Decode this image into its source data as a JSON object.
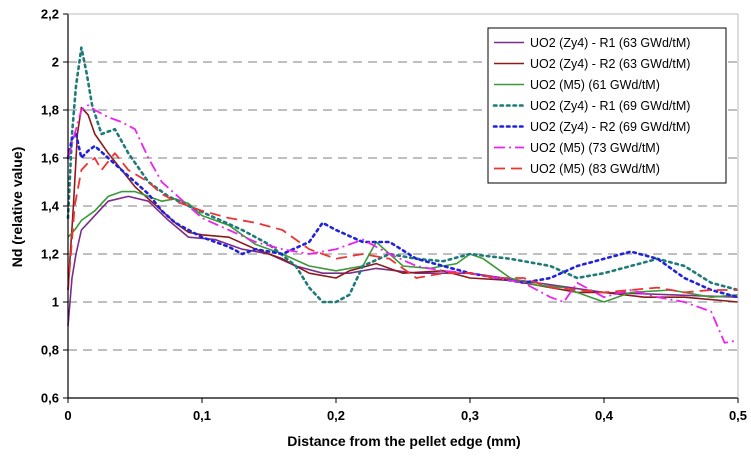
{
  "chart_data": {
    "type": "line",
    "title": "",
    "xlabel": "Distance from the pellet edge (mm)",
    "ylabel": "Nd (relative value)",
    "xlim": [
      0,
      0.5
    ],
    "ylim": [
      0.6,
      2.2
    ],
    "xticks": [
      0,
      0.1,
      0.2,
      0.3,
      0.4,
      0.5
    ],
    "xtick_labels": [
      "0",
      "0,1",
      "0,2",
      "0,3",
      "0,4",
      "0,5"
    ],
    "yticks": [
      0.6,
      0.8,
      1.0,
      1.2,
      1.4,
      1.6,
      1.8,
      2.0,
      2.2
    ],
    "ytick_labels": [
      "0,6",
      "0,8",
      "1",
      "1,2",
      "1,4",
      "1,6",
      "1,8",
      "2",
      "2,2"
    ],
    "grid": "horizontal dashed",
    "legend_position": "top-right",
    "series": [
      {
        "name": "UO2 (Zy4) - R1 (63 GWd/tM)",
        "color": "#7b2d8b",
        "dash": "solid",
        "points": [
          [
            0,
            0.9
          ],
          [
            0.003,
            1.1
          ],
          [
            0.006,
            1.2
          ],
          [
            0.01,
            1.3
          ],
          [
            0.015,
            1.33
          ],
          [
            0.02,
            1.36
          ],
          [
            0.03,
            1.42
          ],
          [
            0.045,
            1.44
          ],
          [
            0.06,
            1.42
          ],
          [
            0.075,
            1.34
          ],
          [
            0.09,
            1.27
          ],
          [
            0.11,
            1.26
          ],
          [
            0.13,
            1.22
          ],
          [
            0.15,
            1.2
          ],
          [
            0.17,
            1.15
          ],
          [
            0.19,
            1.12
          ],
          [
            0.21,
            1.12
          ],
          [
            0.23,
            1.14
          ],
          [
            0.26,
            1.12
          ],
          [
            0.3,
            1.12
          ],
          [
            0.35,
            1.08
          ],
          [
            0.4,
            1.04
          ],
          [
            0.45,
            1.03
          ],
          [
            0.5,
            1.02
          ]
        ]
      },
      {
        "name": "UO2 (Zy4) - R2 (63 GWd/tM)",
        "color": "#8b1a1a",
        "dash": "solid",
        "points": [
          [
            0,
            1.05
          ],
          [
            0.004,
            1.4
          ],
          [
            0.007,
            1.7
          ],
          [
            0.01,
            1.81
          ],
          [
            0.015,
            1.78
          ],
          [
            0.02,
            1.7
          ],
          [
            0.03,
            1.62
          ],
          [
            0.04,
            1.55
          ],
          [
            0.05,
            1.48
          ],
          [
            0.06,
            1.43
          ],
          [
            0.07,
            1.38
          ],
          [
            0.08,
            1.33
          ],
          [
            0.09,
            1.29
          ],
          [
            0.1,
            1.28
          ],
          [
            0.12,
            1.27
          ],
          [
            0.14,
            1.22
          ],
          [
            0.16,
            1.18
          ],
          [
            0.18,
            1.12
          ],
          [
            0.2,
            1.1
          ],
          [
            0.21,
            1.13
          ],
          [
            0.23,
            1.16
          ],
          [
            0.25,
            1.12
          ],
          [
            0.28,
            1.13
          ],
          [
            0.3,
            1.1
          ],
          [
            0.33,
            1.09
          ],
          [
            0.35,
            1.07
          ],
          [
            0.38,
            1.04
          ],
          [
            0.4,
            1.04
          ],
          [
            0.43,
            1.02
          ],
          [
            0.46,
            1.02
          ],
          [
            0.5,
            1.0
          ]
        ]
      },
      {
        "name": "UO2 (M5) (61 GWd/tM)",
        "color": "#3a9a3a",
        "dash": "solid",
        "points": [
          [
            0,
            1.27
          ],
          [
            0.005,
            1.3
          ],
          [
            0.01,
            1.34
          ],
          [
            0.02,
            1.38
          ],
          [
            0.03,
            1.44
          ],
          [
            0.04,
            1.46
          ],
          [
            0.05,
            1.46
          ],
          [
            0.06,
            1.44
          ],
          [
            0.07,
            1.42
          ],
          [
            0.08,
            1.43
          ],
          [
            0.09,
            1.41
          ],
          [
            0.1,
            1.36
          ],
          [
            0.12,
            1.32
          ],
          [
            0.14,
            1.24
          ],
          [
            0.16,
            1.2
          ],
          [
            0.18,
            1.15
          ],
          [
            0.2,
            1.13
          ],
          [
            0.22,
            1.15
          ],
          [
            0.23,
            1.25
          ],
          [
            0.25,
            1.15
          ],
          [
            0.27,
            1.14
          ],
          [
            0.29,
            1.16
          ],
          [
            0.3,
            1.2
          ],
          [
            0.31,
            1.18
          ],
          [
            0.33,
            1.1
          ],
          [
            0.35,
            1.07
          ],
          [
            0.37,
            1.06
          ],
          [
            0.39,
            1.02
          ],
          [
            0.4,
            1.0
          ],
          [
            0.42,
            1.04
          ],
          [
            0.45,
            1.05
          ],
          [
            0.48,
            1.02
          ],
          [
            0.5,
            1.03
          ]
        ]
      },
      {
        "name": "UO2 (Zy4) - R1 (69 GWd/tM)",
        "color": "#1f7a7a",
        "dash": "dot",
        "points": [
          [
            0,
            1.35
          ],
          [
            0.003,
            1.7
          ],
          [
            0.006,
            1.9
          ],
          [
            0.01,
            2.06
          ],
          [
            0.014,
            1.95
          ],
          [
            0.018,
            1.82
          ],
          [
            0.025,
            1.7
          ],
          [
            0.035,
            1.72
          ],
          [
            0.045,
            1.62
          ],
          [
            0.06,
            1.5
          ],
          [
            0.075,
            1.44
          ],
          [
            0.09,
            1.4
          ],
          [
            0.11,
            1.35
          ],
          [
            0.13,
            1.3
          ],
          [
            0.15,
            1.24
          ],
          [
            0.17,
            1.15
          ],
          [
            0.18,
            1.06
          ],
          [
            0.19,
            1.0
          ],
          [
            0.2,
            1.0
          ],
          [
            0.21,
            1.03
          ],
          [
            0.22,
            1.15
          ],
          [
            0.24,
            1.2
          ],
          [
            0.26,
            1.18
          ],
          [
            0.28,
            1.17
          ],
          [
            0.3,
            1.2
          ],
          [
            0.33,
            1.18
          ],
          [
            0.36,
            1.15
          ],
          [
            0.38,
            1.1
          ],
          [
            0.4,
            1.12
          ],
          [
            0.42,
            1.15
          ],
          [
            0.44,
            1.18
          ],
          [
            0.46,
            1.15
          ],
          [
            0.48,
            1.08
          ],
          [
            0.5,
            1.05
          ]
        ]
      },
      {
        "name": "UO2 (Zy4) - R2 (69 GWd/tM)",
        "color": "#2222dd",
        "dash": "dot",
        "points": [
          [
            0,
            1.6
          ],
          [
            0.003,
            1.68
          ],
          [
            0.006,
            1.7
          ],
          [
            0.01,
            1.6
          ],
          [
            0.015,
            1.63
          ],
          [
            0.02,
            1.65
          ],
          [
            0.03,
            1.6
          ],
          [
            0.04,
            1.55
          ],
          [
            0.05,
            1.5
          ],
          [
            0.06,
            1.45
          ],
          [
            0.07,
            1.38
          ],
          [
            0.08,
            1.33
          ],
          [
            0.09,
            1.3
          ],
          [
            0.1,
            1.27
          ],
          [
            0.11,
            1.25
          ],
          [
            0.12,
            1.23
          ],
          [
            0.13,
            1.2
          ],
          [
            0.14,
            1.22
          ],
          [
            0.16,
            1.2
          ],
          [
            0.18,
            1.25
          ],
          [
            0.19,
            1.33
          ],
          [
            0.2,
            1.3
          ],
          [
            0.22,
            1.25
          ],
          [
            0.24,
            1.25
          ],
          [
            0.26,
            1.18
          ],
          [
            0.28,
            1.15
          ],
          [
            0.3,
            1.12
          ],
          [
            0.32,
            1.1
          ],
          [
            0.34,
            1.08
          ],
          [
            0.36,
            1.1
          ],
          [
            0.38,
            1.15
          ],
          [
            0.4,
            1.18
          ],
          [
            0.42,
            1.21
          ],
          [
            0.44,
            1.18
          ],
          [
            0.46,
            1.1
          ],
          [
            0.48,
            1.05
          ],
          [
            0.5,
            1.02
          ]
        ]
      },
      {
        "name": "UO2 (M5) (73 GWd/tM)",
        "color": "#ee22ee",
        "dash": "dashdot",
        "points": [
          [
            0,
            1.6
          ],
          [
            0.005,
            1.7
          ],
          [
            0.01,
            1.8
          ],
          [
            0.015,
            1.82
          ],
          [
            0.02,
            1.8
          ],
          [
            0.03,
            1.77
          ],
          [
            0.04,
            1.75
          ],
          [
            0.05,
            1.72
          ],
          [
            0.06,
            1.6
          ],
          [
            0.07,
            1.5
          ],
          [
            0.08,
            1.45
          ],
          [
            0.09,
            1.4
          ],
          [
            0.1,
            1.35
          ],
          [
            0.12,
            1.3
          ],
          [
            0.14,
            1.25
          ],
          [
            0.16,
            1.22
          ],
          [
            0.18,
            1.2
          ],
          [
            0.2,
            1.22
          ],
          [
            0.22,
            1.26
          ],
          [
            0.24,
            1.2
          ],
          [
            0.26,
            1.15
          ],
          [
            0.28,
            1.13
          ],
          [
            0.3,
            1.12
          ],
          [
            0.32,
            1.1
          ],
          [
            0.34,
            1.08
          ],
          [
            0.36,
            1.02
          ],
          [
            0.37,
            1.0
          ],
          [
            0.38,
            1.08
          ],
          [
            0.4,
            1.02
          ],
          [
            0.42,
            1.05
          ],
          [
            0.44,
            1.02
          ],
          [
            0.46,
            1.0
          ],
          [
            0.48,
            0.96
          ],
          [
            0.49,
            0.83
          ],
          [
            0.5,
            0.84
          ]
        ]
      },
      {
        "name": "UO2 (M5) (83 GWd/tM)",
        "color": "#ee3333",
        "dash": "dash",
        "points": [
          [
            0,
            1.05
          ],
          [
            0.005,
            1.4
          ],
          [
            0.01,
            1.55
          ],
          [
            0.015,
            1.58
          ],
          [
            0.02,
            1.6
          ],
          [
            0.025,
            1.55
          ],
          [
            0.035,
            1.62
          ],
          [
            0.045,
            1.55
          ],
          [
            0.06,
            1.5
          ],
          [
            0.07,
            1.45
          ],
          [
            0.08,
            1.42
          ],
          [
            0.1,
            1.38
          ],
          [
            0.12,
            1.35
          ],
          [
            0.14,
            1.33
          ],
          [
            0.16,
            1.3
          ],
          [
            0.18,
            1.22
          ],
          [
            0.2,
            1.18
          ],
          [
            0.22,
            1.2
          ],
          [
            0.24,
            1.18
          ],
          [
            0.26,
            1.1
          ],
          [
            0.28,
            1.12
          ],
          [
            0.3,
            1.12
          ],
          [
            0.32,
            1.1
          ],
          [
            0.34,
            1.1
          ],
          [
            0.36,
            1.06
          ],
          [
            0.38,
            1.05
          ],
          [
            0.4,
            1.04
          ],
          [
            0.42,
            1.05
          ],
          [
            0.44,
            1.06
          ],
          [
            0.46,
            1.04
          ],
          [
            0.48,
            1.05
          ],
          [
            0.5,
            1.05
          ]
        ]
      }
    ]
  }
}
